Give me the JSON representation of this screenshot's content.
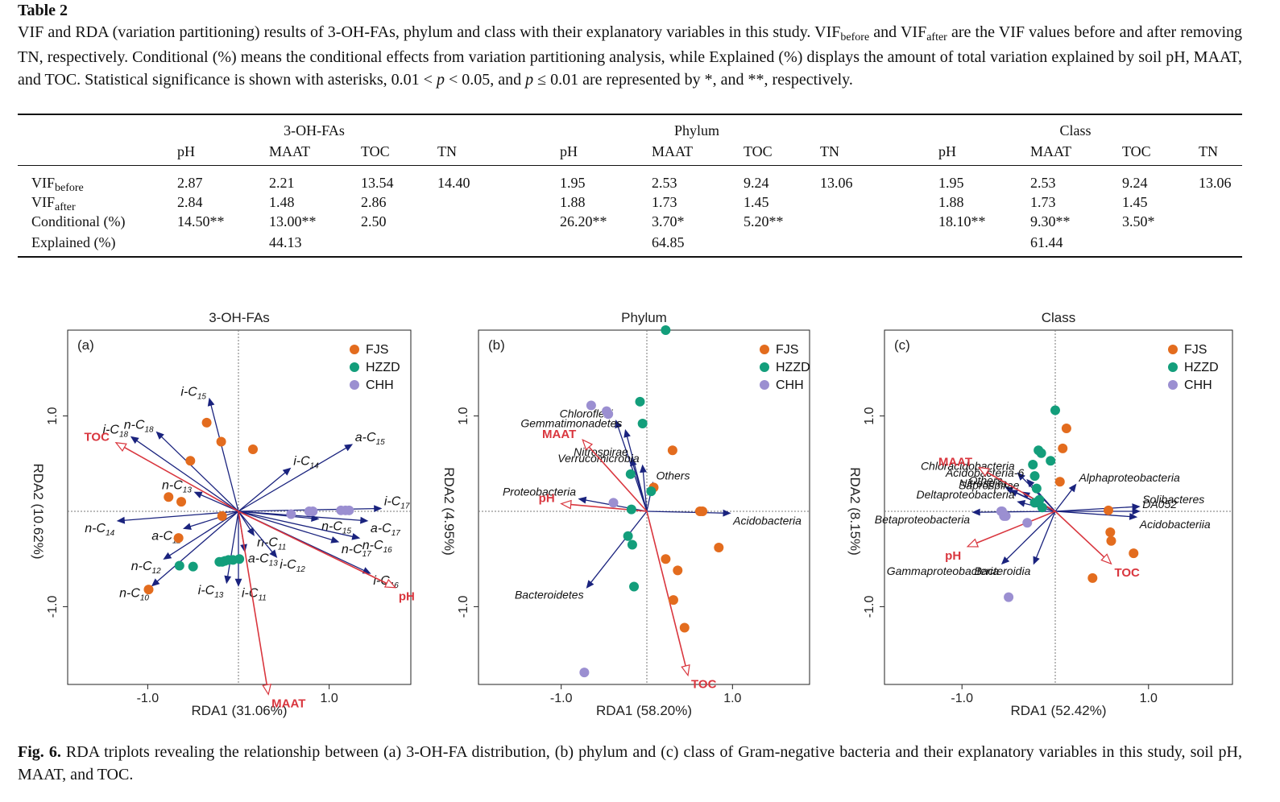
{
  "table": {
    "title": "Table 2",
    "caption_parts": [
      "VIF and RDA (variation partitioning) results of 3-OH-FAs, phylum and class with their explanatory variables in this study. VIF",
      "before",
      " and VIF",
      "after",
      " are the VIF values before and after removing TN, respectively. Conditional (%) means the conditional effects from variation partitioning analysis, while Explained (%) displays the amount of total variation explained by soil pH, MAAT, and TOC. Statistical significance is shown with asterisks, 0.01 < ",
      "p",
      " < 0.05, and ",
      "p",
      " ≤ 0.01 are represented by *, and **, respectively."
    ],
    "groups": [
      "3-OH-FAs",
      "Phylum",
      "Class"
    ],
    "columns": [
      "pH",
      "MAAT",
      "TOC",
      "TN"
    ],
    "row_labels": [
      {
        "main": "VIF",
        "sub": "before"
      },
      {
        "main": "VIF",
        "sub": "after"
      },
      {
        "main": "Conditional (%)",
        "sub": ""
      },
      {
        "main": "Explained (%)",
        "sub": ""
      }
    ],
    "data": [
      {
        "vif_before": [
          "2.87",
          "2.21",
          "13.54",
          "14.40"
        ],
        "vif_after": [
          "2.84",
          "1.48",
          "2.86",
          ""
        ],
        "conditional": [
          "14.50**",
          "13.00**",
          "2.50",
          ""
        ],
        "explained": "44.13"
      },
      {
        "vif_before": [
          "1.95",
          "2.53",
          "9.24",
          "13.06"
        ],
        "vif_after": [
          "1.88",
          "1.73",
          "1.45",
          ""
        ],
        "conditional": [
          "26.20**",
          "3.70*",
          "5.20**",
          ""
        ],
        "explained": "64.85"
      },
      {
        "vif_before": [
          "1.95",
          "2.53",
          "9.24",
          "13.06"
        ],
        "vif_after": [
          "1.88",
          "1.73",
          "1.45",
          ""
        ],
        "conditional": [
          "18.10**",
          "9.30**",
          "3.50*",
          ""
        ],
        "explained": "61.44"
      }
    ]
  },
  "legend": [
    "FJS",
    "HZZD",
    "CHH"
  ],
  "colors": {
    "FJS": "#e36c1e",
    "HZZD": "#139e7b",
    "CHH": "#9b8fd1",
    "env": "#d9363e",
    "species": "#1a237e"
  },
  "chart_data": [
    {
      "type": "scatter",
      "title": "3-OH-FAs",
      "panel_label": "(a)",
      "xlabel": "RDA1 (31.06%)",
      "ylabel": "RDA2 (10.62%)",
      "xlim": [
        -1.0,
        1.0
      ],
      "ylim": [
        -1.0,
        1.0
      ],
      "x_ticks": [
        "-1.0",
        "1.0"
      ],
      "y_ticks": [
        "-1.0",
        "1.0"
      ],
      "points": {
        "FJS": [
          [
            -0.35,
            0.93
          ],
          [
            -0.19,
            0.73
          ],
          [
            0.16,
            0.65
          ],
          [
            -0.53,
            0.53
          ],
          [
            -0.77,
            0.15
          ],
          [
            -0.63,
            0.1
          ],
          [
            -0.18,
            -0.05
          ],
          [
            -0.66,
            -0.28
          ],
          [
            -0.99,
            -0.82
          ]
        ],
        "HZZD": [
          [
            -0.65,
            -0.57
          ],
          [
            -0.5,
            -0.58
          ],
          [
            -0.21,
            -0.53
          ],
          [
            -0.18,
            -0.53
          ],
          [
            -0.15,
            -0.52
          ],
          [
            -0.11,
            -0.51
          ],
          [
            -0.06,
            -0.51
          ],
          [
            0.01,
            -0.5
          ]
        ],
        "CHH": [
          [
            0.58,
            -0.03
          ],
          [
            0.78,
            -0.0
          ],
          [
            0.82,
            0.0
          ],
          [
            1.13,
            0.01
          ],
          [
            1.18,
            0.01
          ],
          [
            1.22,
            0.01
          ]
        ]
      },
      "env_vectors": [
        {
          "label": "TOC",
          "x": -1.35,
          "y": 0.72
        },
        {
          "label": "MAAT",
          "x": 0.33,
          "y": -1.92
        },
        {
          "label": "pH",
          "x": 1.73,
          "y": -0.8
        }
      ],
      "species_vectors": [
        {
          "label": "i-C15",
          "x": -0.32,
          "y": 1.18
        },
        {
          "label": "i-C18",
          "x": -1.18,
          "y": 0.78
        },
        {
          "label": "n-C18",
          "x": -0.9,
          "y": 0.83
        },
        {
          "label": "a-C15",
          "x": 1.25,
          "y": 0.7
        },
        {
          "label": "i-C14",
          "x": 0.57,
          "y": 0.45
        },
        {
          "label": "n-C13",
          "x": -0.48,
          "y": 0.2
        },
        {
          "label": "n-C14",
          "x": -1.33,
          "y": -0.1
        },
        {
          "label": "a-C11",
          "x": -0.6,
          "y": -0.18
        },
        {
          "label": "i-C17",
          "x": 1.57,
          "y": 0.03
        },
        {
          "label": "n-C15",
          "x": 0.88,
          "y": -0.08
        },
        {
          "label": "a-C17",
          "x": 1.42,
          "y": -0.1
        },
        {
          "label": "n-C11",
          "x": 0.17,
          "y": -0.25
        },
        {
          "label": "n-C16",
          "x": 1.33,
          "y": -0.28
        },
        {
          "label": "n-C17",
          "x": 1.1,
          "y": -0.32
        },
        {
          "label": "a-C13",
          "x": 0.07,
          "y": -0.42
        },
        {
          "label": "i-C12",
          "x": 0.42,
          "y": -0.48
        },
        {
          "label": "n-C12",
          "x": -0.82,
          "y": -0.5
        },
        {
          "label": "n-C10",
          "x": -0.95,
          "y": -0.78
        },
        {
          "label": "i-C13",
          "x": -0.13,
          "y": -0.75
        },
        {
          "label": "i-C11",
          "x": 0.0,
          "y": -0.78
        },
        {
          "label": "i-C16",
          "x": 1.45,
          "y": -0.65
        }
      ]
    },
    {
      "type": "scatter",
      "title": "Phylum",
      "panel_label": "(b)",
      "xlabel": "RDA1 (58.20%)",
      "ylabel": "RDA2 (4.95%)",
      "xlim": [
        -1.0,
        1.0
      ],
      "ylim": [
        -1.0,
        1.0
      ],
      "x_ticks": [
        "-1.0",
        "1.0"
      ],
      "y_ticks": [
        "-1.0",
        "1.0"
      ],
      "points": {
        "FJS": [
          [
            0.3,
            0.64
          ],
          [
            0.08,
            0.25
          ],
          [
            0.62,
            0.0
          ],
          [
            0.65,
            0.0
          ],
          [
            0.22,
            -0.5
          ],
          [
            0.36,
            -0.62
          ],
          [
            0.31,
            -0.93
          ],
          [
            0.44,
            -1.22
          ],
          [
            0.84,
            -0.38
          ]
        ],
        "HZZD": [
          [
            0.22,
            1.9
          ],
          [
            -0.08,
            1.15
          ],
          [
            -0.05,
            0.92
          ],
          [
            -0.19,
            0.39
          ],
          [
            0.05,
            0.21
          ],
          [
            -0.18,
            0.02
          ],
          [
            -0.22,
            -0.26
          ],
          [
            -0.17,
            -0.35
          ],
          [
            -0.15,
            -0.79
          ]
        ],
        "CHH": [
          [
            -0.65,
            1.11
          ],
          [
            -0.47,
            1.05
          ],
          [
            -0.45,
            1.02
          ],
          [
            -0.39,
            0.09
          ],
          [
            -0.73,
            -1.69
          ]
        ]
      },
      "env_vectors": [
        {
          "label": "MAAT",
          "x": -0.75,
          "y": 0.75
        },
        {
          "label": "pH",
          "x": -1.0,
          "y": 0.08
        },
        {
          "label": "TOC",
          "x": 0.48,
          "y": -1.72
        }
      ],
      "species_vectors": [
        {
          "label": "Chloroflexi",
          "x": -0.36,
          "y": 0.95
        },
        {
          "label": "Gemmatimonadetes",
          "x": -0.25,
          "y": 0.85
        },
        {
          "label": "Nitrospirae",
          "x": -0.18,
          "y": 0.55
        },
        {
          "label": "Verrucomicrobia",
          "x": -0.05,
          "y": 0.48
        },
        {
          "label": "Proteobacteria",
          "x": -0.79,
          "y": 0.13
        },
        {
          "label": "Others",
          "x": 0.07,
          "y": 0.3
        },
        {
          "label": "Acidobacteria",
          "x": 0.97,
          "y": -0.02
        },
        {
          "label": "Bacteroidetes",
          "x": -0.7,
          "y": -0.8
        }
      ]
    },
    {
      "type": "scatter",
      "title": "Class",
      "panel_label": "(c)",
      "xlabel": "RDA1 (52.42%)",
      "ylabel": "RDA2 (8.15%)",
      "xlim": [
        -1.0,
        1.0
      ],
      "ylim": [
        -1.0,
        1.0
      ],
      "x_ticks": [
        "-1.0",
        "1.0"
      ],
      "y_ticks": [
        "-1.0",
        "1.0"
      ],
      "points": {
        "FJS": [
          [
            0.12,
            0.87
          ],
          [
            0.08,
            0.66
          ],
          [
            0.05,
            0.31
          ],
          [
            0.57,
            0.01
          ],
          [
            0.59,
            -0.22
          ],
          [
            0.6,
            -0.31
          ],
          [
            0.84,
            -0.44
          ],
          [
            0.4,
            -0.7
          ]
        ],
        "HZZD": [
          [
            0.0,
            1.06
          ],
          [
            -0.18,
            0.64
          ],
          [
            -0.15,
            0.61
          ],
          [
            -0.05,
            0.53
          ],
          [
            -0.24,
            0.49
          ],
          [
            -0.22,
            0.37
          ],
          [
            -0.2,
            0.24
          ],
          [
            -0.17,
            0.12
          ],
          [
            -0.22,
            0.09
          ],
          [
            -0.14,
            0.04
          ]
        ],
        "CHH": [
          [
            -0.55,
            -0.05
          ],
          [
            -0.53,
            -0.05
          ],
          [
            -0.57,
            0.0
          ],
          [
            -0.58,
            0.0
          ],
          [
            -0.3,
            -0.12
          ],
          [
            -0.5,
            -0.9
          ]
        ]
      },
      "env_vectors": [
        {
          "label": "MAAT",
          "x": -0.82,
          "y": 0.46
        },
        {
          "label": "pH",
          "x": -0.94,
          "y": -0.37
        },
        {
          "label": "TOC",
          "x": 0.6,
          "y": -0.55
        }
      ],
      "species_vectors": [
        {
          "label": "Chloracidobacteria",
          "x": -0.4,
          "y": 0.4
        },
        {
          "label": "Acidobacteria-6",
          "x": -0.3,
          "y": 0.33
        },
        {
          "label": "Others",
          "x": -0.53,
          "y": 0.25
        },
        {
          "label": "Nitrospira",
          "x": -0.48,
          "y": 0.22
        },
        {
          "label": "Saprospirae",
          "x": -0.35,
          "y": 0.2
        },
        {
          "label": "Alphaproteobacteria",
          "x": 0.22,
          "y": 0.28
        },
        {
          "label": "Deltaproteobacteria",
          "x": -0.4,
          "y": 0.1
        },
        {
          "label": "Solibacteres",
          "x": 0.9,
          "y": 0.05
        },
        {
          "label": "DA052",
          "x": 0.9,
          "y": 0.0
        },
        {
          "label": "Betaproteobacteria",
          "x": -0.88,
          "y": -0.01
        },
        {
          "label": "Acidobacteriia",
          "x": 0.87,
          "y": -0.06
        },
        {
          "label": "Gammaproteobacteria",
          "x": -0.57,
          "y": -0.55
        },
        {
          "label": "Bacteroidia",
          "x": -0.23,
          "y": -0.55
        }
      ]
    }
  ],
  "figure_caption": {
    "label": "Fig. 6.",
    "text": " RDA triplots revealing the relationship between (a) 3-OH-FA distribution, (b) phylum and (c) class of Gram-negative bacteria and their explanatory variables in this study, soil pH, MAAT, and TOC."
  }
}
